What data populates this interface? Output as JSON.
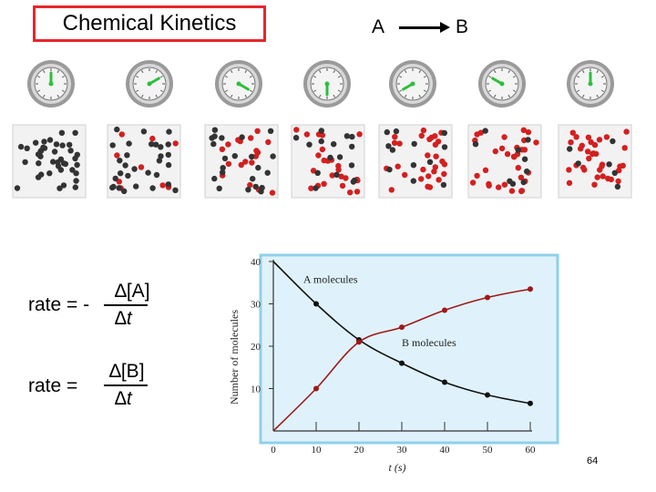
{
  "slide": {
    "title": "Chemical Kinetics",
    "reaction_reactant": "A",
    "reaction_product": "B",
    "page_number": "64"
  },
  "equations": {
    "rate_a_prefix": "rate = -",
    "rate_a_numerator": "∆[A]",
    "rate_a_denominator": "∆t",
    "rate_b_prefix": "rate =",
    "rate_b_numerator": "∆[B]",
    "rate_b_denominator": "∆t"
  },
  "snapshots": {
    "clock_hand_angles_deg": [
      0,
      60,
      120,
      180,
      240,
      300,
      360
    ],
    "fraction_b": [
      0.0,
      0.25,
      0.45,
      0.6,
      0.7,
      0.77,
      0.83
    ],
    "colors": {
      "a_molecule": "#333333",
      "b_molecule": "#d41f1f",
      "clock_face": "#f4f4f4",
      "clock_hand": "#2bbf3a"
    }
  },
  "chart_data": {
    "type": "line",
    "xlabel": "t (s)",
    "ylabel": "Number of molecules",
    "xlim": [
      0,
      60
    ],
    "ylim": [
      0,
      40
    ],
    "xticks": [
      0,
      10,
      20,
      30,
      40,
      50,
      60
    ],
    "yticks": [
      10,
      20,
      30,
      40
    ],
    "series": [
      {
        "name": "A molecules",
        "x": [
          0,
          10,
          20,
          30,
          40,
          50,
          60
        ],
        "y": [
          40,
          30,
          21.5,
          16,
          11.5,
          8.5,
          6.5
        ],
        "color": "#111111"
      },
      {
        "name": "B molecules",
        "x": [
          0,
          10,
          20,
          30,
          40,
          50,
          60
        ],
        "y": [
          0,
          10,
          21,
          24.5,
          28.5,
          31.5,
          33.5
        ],
        "color": "#a01818"
      }
    ],
    "background": "#dff2fb",
    "border_color": "#8fd0ea"
  }
}
